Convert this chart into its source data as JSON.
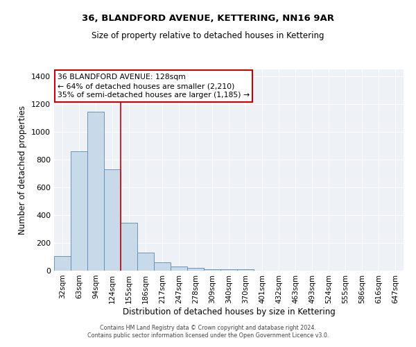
{
  "title": "36, BLANDFORD AVENUE, KETTERING, NN16 9AR",
  "subtitle": "Size of property relative to detached houses in Kettering",
  "xlabel": "Distribution of detached houses by size in Kettering",
  "ylabel": "Number of detached properties",
  "bar_color": "#c8daea",
  "bar_edge_color": "#5a8ab0",
  "background_color": "#eef2f7",
  "categories": [
    "32sqm",
    "63sqm",
    "94sqm",
    "124sqm",
    "155sqm",
    "186sqm",
    "217sqm",
    "247sqm",
    "278sqm",
    "309sqm",
    "340sqm",
    "370sqm",
    "401sqm",
    "432sqm",
    "463sqm",
    "493sqm",
    "524sqm",
    "555sqm",
    "586sqm",
    "616sqm",
    "647sqm"
  ],
  "values": [
    105,
    860,
    1145,
    730,
    345,
    130,
    62,
    32,
    20,
    12,
    10,
    8,
    0,
    0,
    0,
    0,
    0,
    0,
    0,
    0,
    0
  ],
  "annotation_title": "36 BLANDFORD AVENUE: 128sqm",
  "annotation_line2": "← 64% of detached houses are smaller (2,210)",
  "annotation_line3": "35% of semi-detached houses are larger (1,185) →",
  "annotation_box_color": "#ffffff",
  "annotation_border_color": "#cc0000",
  "property_line_x": 3.5,
  "property_line_color": "#cc0000",
  "ylim": [
    0,
    1450
  ],
  "yticks": [
    0,
    200,
    400,
    600,
    800,
    1000,
    1200,
    1400
  ],
  "footer_line1": "Contains HM Land Registry data © Crown copyright and database right 2024.",
  "footer_line2": "Contains public sector information licensed under the Open Government Licence v3.0."
}
